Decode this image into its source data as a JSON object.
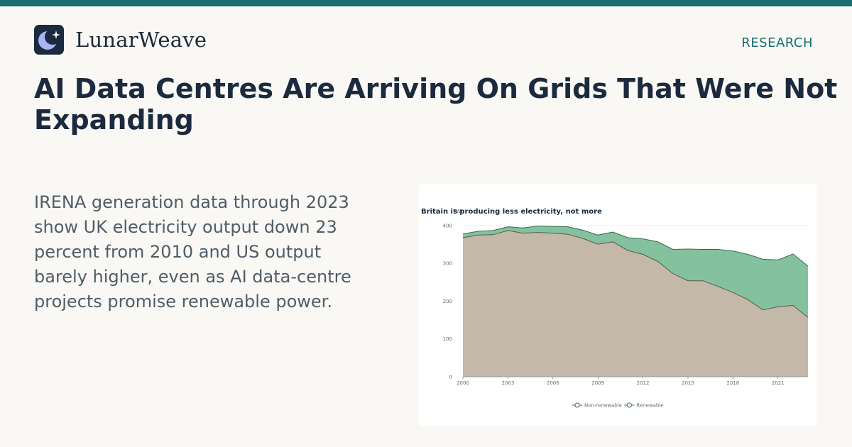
{
  "brand": {
    "name": "LunarWeave",
    "logo_icon": "crescent-moon-star-icon"
  },
  "section_label": "RESEARCH",
  "headline": "AI Data Centres Are Arriving On Grids That Were Not Expanding",
  "summary": "IRENA generation data through 2023 show UK electricity output down 23 percent from 2010 and US output barely higher, even as AI data-centre projects promise renewable power.",
  "colors": {
    "accent": "#186f6e",
    "non_renewable": "#c4b8a8",
    "non_renewable_line": "#5a5a4a",
    "renewable": "#84c29f",
    "renewable_line": "#2f6e4e"
  },
  "chart_data": {
    "type": "area",
    "stacked": true,
    "title": "Britain is producing less electricity, not more",
    "ylabel": "TWh",
    "xlabel": "",
    "x": [
      2000,
      2001,
      2002,
      2003,
      2004,
      2005,
      2006,
      2007,
      2008,
      2009,
      2010,
      2011,
      2012,
      2013,
      2014,
      2015,
      2016,
      2017,
      2018,
      2019,
      2020,
      2021,
      2022,
      2023
    ],
    "xticks": [
      2000,
      2003,
      2006,
      2009,
      2012,
      2015,
      2018,
      2021
    ],
    "yticks": [
      0,
      100,
      200,
      300,
      400
    ],
    "ylim": [
      0,
      415
    ],
    "xlim": [
      2000,
      2023
    ],
    "grid": true,
    "legend_position": "bottom-center",
    "series": [
      {
        "name": "Non-renewable",
        "values": [
          368,
          375,
          376,
          387,
          380,
          382,
          380,
          377,
          366,
          351,
          357,
          334,
          324,
          305,
          273,
          254,
          254,
          239,
          223,
          204,
          177,
          185,
          189,
          157
        ]
      },
      {
        "name": "Renewable",
        "values": [
          10,
          10,
          11,
          10,
          14,
          17,
          18,
          20,
          22,
          24,
          26,
          34,
          41,
          52,
          64,
          84,
          83,
          98,
          110,
          120,
          134,
          124,
          136,
          136
        ]
      }
    ]
  }
}
